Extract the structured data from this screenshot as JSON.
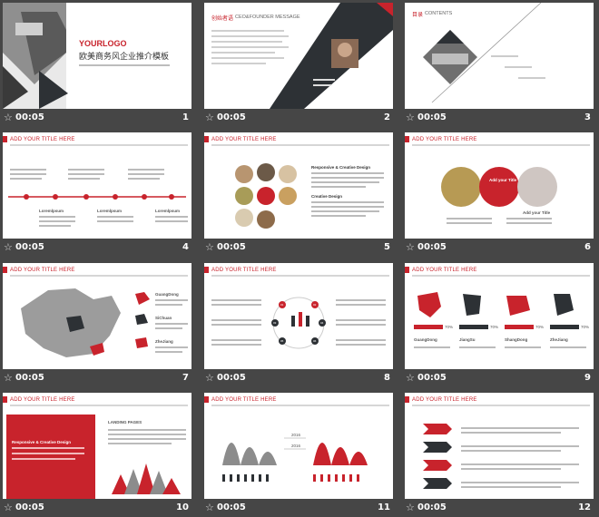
{
  "slides": [
    {
      "duration": "00:05",
      "number": "1",
      "logo": "YOURLOGO",
      "title": "欧美商务风企业推介模板"
    },
    {
      "duration": "00:05",
      "number": "2",
      "heading": "创始者语",
      "subheading": "CEO&FOUNDER MESSAGE"
    },
    {
      "duration": "00:05",
      "number": "3",
      "heading": "目录",
      "subheading": "CONTENTS"
    },
    {
      "duration": "00:05",
      "number": "4",
      "heading": "ADD YOUR TITLE HERE",
      "labels": [
        "Loremlpsum",
        "Loremlpsum",
        "Loremlpsum"
      ]
    },
    {
      "duration": "00:05",
      "number": "5",
      "heading": "ADD YOUR TITLE HERE",
      "labels": [
        "Responsive & Creative Design",
        "Creative Design"
      ]
    },
    {
      "duration": "00:05",
      "number": "6",
      "heading": "ADD YOUR TITLE HERE",
      "labels": [
        "Add your Title",
        "Add your Title"
      ]
    },
    {
      "duration": "00:05",
      "number": "7",
      "heading": "ADD YOUR TITLE HERE",
      "labels": [
        "GuangDong",
        "SiChuan",
        "ZheJiang"
      ]
    },
    {
      "duration": "00:05",
      "number": "8",
      "heading": "ADD YOUR TITLE HERE",
      "labels": [
        "01",
        "02",
        "03",
        "04",
        "05",
        "06"
      ]
    },
    {
      "duration": "00:05",
      "number": "9",
      "heading": "ADD YOUR TITLE HERE",
      "labels": [
        "GuangDong",
        "JiangSu",
        "ShangDong",
        "ZheJiang"
      ],
      "percents": [
        "70%",
        "70%",
        "70%",
        "70%"
      ]
    },
    {
      "duration": "00:05",
      "number": "10",
      "heading": "ADD YOUR TITLE HERE",
      "labels": [
        "Responsive & Creative Design",
        "LANDING PAGES"
      ]
    },
    {
      "duration": "00:05",
      "number": "11",
      "heading": "ADD YOUR TITLE HERE",
      "labels": [
        "2016",
        "2016"
      ]
    },
    {
      "duration": "00:05",
      "number": "12",
      "heading": "ADD YOUR TITLE HERE"
    }
  ],
  "colors": {
    "accent": "#c8232c",
    "dark": "#2d3135",
    "background": "#464646"
  }
}
